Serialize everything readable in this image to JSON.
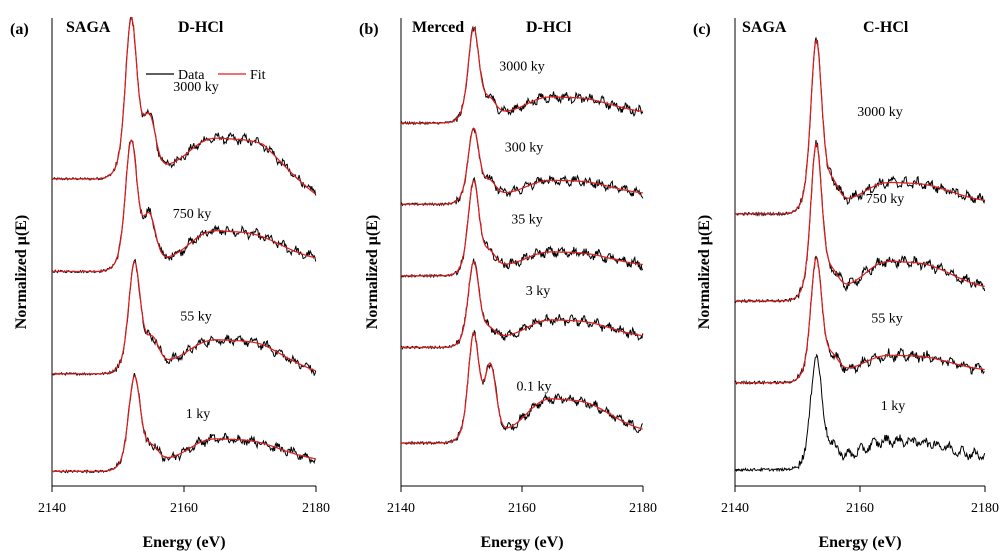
{
  "colors": {
    "data": "#000000",
    "fit": "#e31a1c",
    "axis": "#000000"
  },
  "chart_data": [
    {
      "type": "line",
      "panel": "(a)",
      "sample": "SAGA",
      "treatment": "D-HCl",
      "xlabel": "Energy (eV)",
      "ylabel": "Normalized μ(E)",
      "xlim": [
        2140,
        2180
      ],
      "xticks": [
        2140,
        2160,
        2180
      ],
      "legend": {
        "entries": [
          "Data",
          "Fit"
        ],
        "position": "top-right"
      },
      "series": [
        {
          "label": "3000 ky",
          "offset": 3.0,
          "peak": 1.55,
          "peak_energy": 2152.0,
          "shoulder": 0.45,
          "broad": 0.42,
          "baseline_end": -0.3,
          "fit": true
        },
        {
          "label": "750 ky",
          "offset": 2.05,
          "peak": 1.25,
          "peak_energy": 2152.0,
          "shoulder": 0.4,
          "broad": 0.42,
          "baseline_end": 0.0,
          "fit": true
        },
        {
          "label": "55 ky",
          "offset": 1.0,
          "peak": 1.05,
          "peak_energy": 2152.5,
          "shoulder": 0.2,
          "broad": 0.33,
          "baseline_end": -0.1,
          "fit": true
        },
        {
          "label": "1 ky",
          "offset": 0.0,
          "peak": 0.88,
          "peak_energy": 2152.5,
          "shoulder": 0.1,
          "broad": 0.31,
          "baseline_end": 0.0,
          "fit": true
        }
      ]
    },
    {
      "type": "line",
      "panel": "(b)",
      "sample": "Merced",
      "treatment": "D-HCl",
      "xlabel": "Energy (eV)",
      "ylabel": "Normalized μ(E)",
      "xlim": [
        2140,
        2180
      ],
      "xticks": [
        2140,
        2160,
        2180
      ],
      "series": [
        {
          "label": "3000 ky",
          "offset": 3.35,
          "peak": 0.9,
          "peak_energy": 2152.0,
          "shoulder": 0.1,
          "broad": 0.23,
          "baseline_end": 0.0,
          "fit": true
        },
        {
          "label": "300 ky",
          "offset": 2.5,
          "peak": 0.7,
          "peak_energy": 2152.0,
          "shoulder": 0.1,
          "broad": 0.2,
          "baseline_end": 0.0,
          "fit": true
        },
        {
          "label": "35 ky",
          "offset": 1.75,
          "peak": 0.9,
          "peak_energy": 2152.0,
          "shoulder": 0.1,
          "broad": 0.2,
          "baseline_end": 0.0,
          "fit": true
        },
        {
          "label": "3 ky",
          "offset": 1.0,
          "peak": 0.8,
          "peak_energy": 2152.0,
          "shoulder": 0.05,
          "broad": 0.25,
          "baseline_end": 0.0,
          "fit": true
        },
        {
          "label": "0.1 ky",
          "offset": 0.0,
          "peak": 1.05,
          "peak_energy": 2152.0,
          "shoulder": 0.65,
          "broad": 0.48,
          "baseline_end": 0.0,
          "fit": true
        }
      ]
    },
    {
      "type": "line",
      "panel": "(c)",
      "sample": "SAGA",
      "treatment": "C-HCl",
      "xlabel": "Energy (eV)",
      "ylabel": "Normalized μ(E)",
      "xlim": [
        2140,
        2180
      ],
      "xticks": [
        2140,
        2160,
        2180
      ],
      "series": [
        {
          "label": "3000 ky",
          "offset": 2.35,
          "peak": 1.5,
          "peak_energy": 2153.0,
          "shoulder": 0.1,
          "broad": 0.25,
          "baseline_end": 0.0,
          "fit": true
        },
        {
          "label": "750 ky",
          "offset": 1.55,
          "peak": 1.35,
          "peak_energy": 2153.0,
          "shoulder": 0.08,
          "broad": 0.35,
          "baseline_end": 0.0,
          "fit": true
        },
        {
          "label": "55 ky",
          "offset": 0.8,
          "peak": 1.05,
          "peak_energy": 2153.0,
          "shoulder": 0.08,
          "broad": 0.2,
          "baseline_end": 0.0,
          "fit": true
        },
        {
          "label": "1 ky",
          "offset": 0.0,
          "peak": 0.95,
          "peak_energy": 2153.0,
          "shoulder": 0.05,
          "broad": 0.22,
          "baseline_end": 0.0,
          "fit": false
        }
      ]
    }
  ]
}
